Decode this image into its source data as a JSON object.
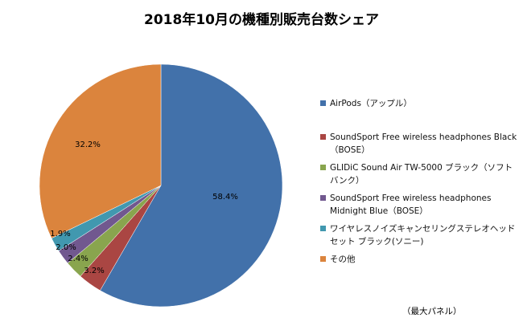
{
  "chart_data": {
    "type": "pie",
    "title": "2018年10月の機種別販売台数シェア",
    "start_angle": "top",
    "direction": "clockwise",
    "legend_position": "right",
    "slices": [
      {
        "name": "AirPods（アップル）",
        "value": 58.4,
        "label": "58.4%",
        "color": "#4271AA"
      },
      {
        "name": "SoundSport Free wireless headphones Black（BOSE）",
        "value": 3.2,
        "label": "3.2%",
        "color": "#AA4643"
      },
      {
        "name": "GLIDiC Sound Air TW-5000 ブラック（ソフトバンク）",
        "value": 2.4,
        "label": "2.4%",
        "color": "#89A54E"
      },
      {
        "name": "SoundSport Free wireless headphones Midnight Blue（BOSE）",
        "value": 2.0,
        "label": "2.0%",
        "color": "#71588F"
      },
      {
        "name": "ワイヤレスノイズキャンセリングステレオヘッドセット ブラック(ソニー)",
        "value": 1.9,
        "label": "1.9%",
        "color": "#4198AF"
      },
      {
        "name": "その他",
        "value": 32.2,
        "label": "32.2%",
        "color": "#DB843D"
      }
    ]
  },
  "source_note": "（最大パネル）"
}
